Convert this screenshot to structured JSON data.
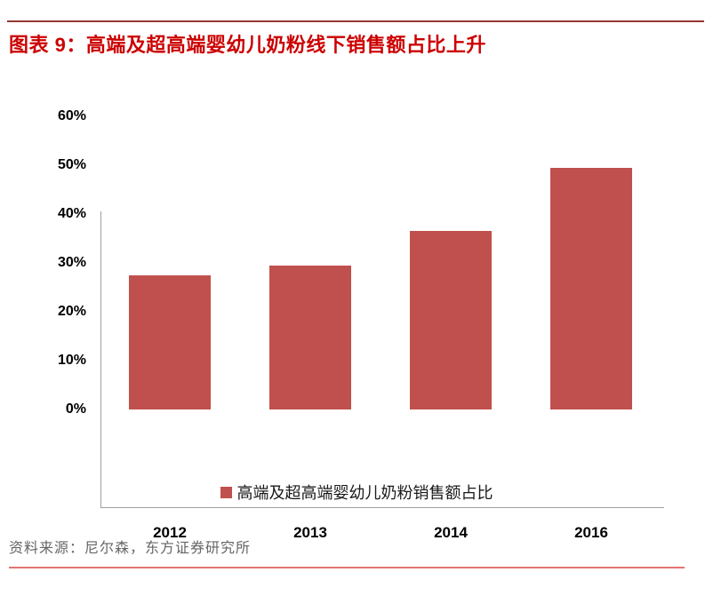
{
  "header": {
    "title": "图表 9：高端及超高端婴幼儿奶粉线下销售额占比上升"
  },
  "chart_data": {
    "type": "bar",
    "title": "高端及超高端婴幼儿奶粉线下销售额占比上升",
    "categories": [
      "2012",
      "2013",
      "2014",
      "2016"
    ],
    "values": [
      27.5,
      29.5,
      36.5,
      49.5
    ],
    "series_name": "高端及超高端婴幼儿奶粉销售额占比",
    "xlabel": "",
    "ylabel": "",
    "ylim": [
      0,
      60
    ],
    "ytick_labels": [
      "0%",
      "10%",
      "20%",
      "30%",
      "40%",
      "50%",
      "60%"
    ],
    "grid": false,
    "legend_position": "bottom",
    "bar_color": "#C0504D"
  },
  "legend": {
    "label": "高端及超高端婴幼儿奶粉销售额占比",
    "swatch_color": "#C0504D"
  },
  "footer": {
    "source": "资料来源：尼尔森，东方证券研究所"
  },
  "colors": {
    "title_red": "#CC0000",
    "top_rule": "#963634",
    "bottom_rule": "#E57373",
    "bar": "#C0504D",
    "axis_gray": "#A0A0A0",
    "source_text": "#666666"
  }
}
